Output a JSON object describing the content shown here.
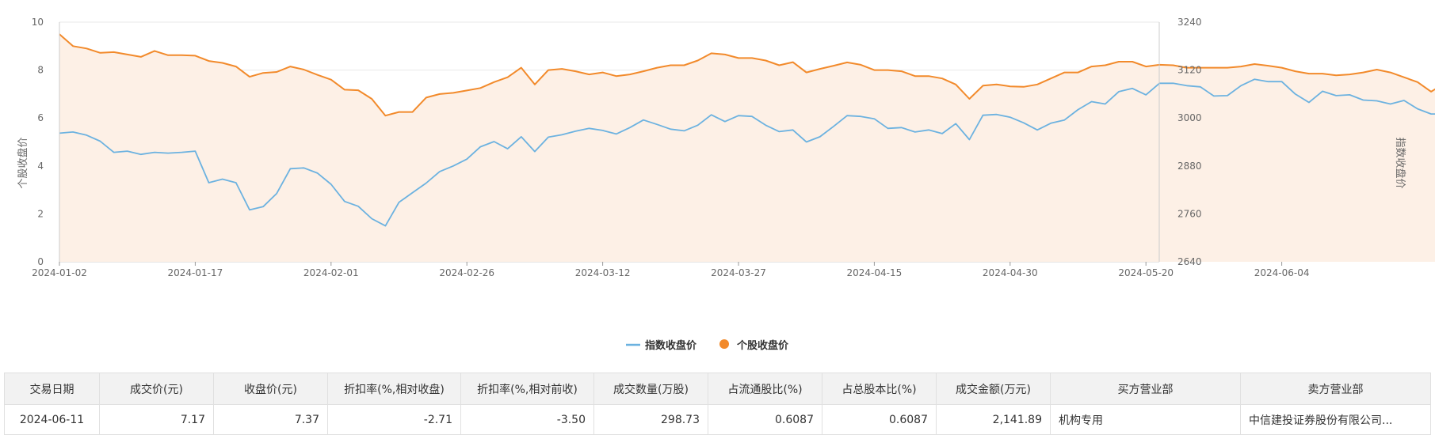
{
  "chart_data": {
    "type": "line",
    "legend_position": "bottom-center",
    "grid": true,
    "left_axis": {
      "label": "个股收盘价",
      "ylim": [
        0,
        10
      ],
      "ticks": [
        0,
        2,
        4,
        6,
        8,
        10
      ]
    },
    "right_axis": {
      "label": "指数收盘价",
      "ylim": [
        2640,
        3240
      ],
      "ticks": [
        2640,
        2760,
        2880,
        3000,
        3120,
        3240
      ]
    },
    "x_tick_labels": [
      "2024-01-02",
      "2024-01-17",
      "2024-02-01",
      "2024-02-26",
      "2024-03-12",
      "2024-03-27",
      "2024-04-15",
      "2024-04-30",
      "2024-05-20",
      "2024-06-04"
    ],
    "series": [
      {
        "name": "指数收盘价",
        "axis": "right",
        "color": "#6cb2e0",
        "values": [
          2962,
          2965,
          2957,
          2942,
          2914,
          2917,
          2909,
          2914,
          2912,
          2914,
          2917,
          2838,
          2847,
          2838,
          2770,
          2778,
          2811,
          2873,
          2875,
          2862,
          2834,
          2791,
          2779,
          2748,
          2730,
          2789,
          2813,
          2837,
          2866,
          2880,
          2897,
          2928,
          2941,
          2923,
          2953,
          2916,
          2952,
          2958,
          2967,
          2974,
          2969,
          2960,
          2976,
          2995,
          2984,
          2972,
          2968,
          2982,
          3008,
          2991,
          3006,
          3004,
          2982,
          2966,
          2970,
          2940,
          2953,
          2979,
          3006,
          3004,
          2998,
          2974,
          2976,
          2965,
          2970,
          2961,
          2986,
          2946,
          3007,
          3009,
          3002,
          2988,
          2970,
          2987,
          2995,
          3021,
          3041,
          3035,
          3066,
          3074,
          3058,
          3087,
          3087,
          3081,
          3078,
          3055,
          3056,
          3081,
          3097,
          3091,
          3091,
          3060,
          3039,
          3067,
          3056,
          3058,
          3045,
          3043,
          3035,
          3044,
          3023,
          3010,
          3010,
          2989
        ]
      },
      {
        "name": "个股收盘价",
        "axis": "left",
        "color": "#f28a2b",
        "values": [
          9.5,
          9.0,
          8.9,
          8.72,
          8.75,
          8.65,
          8.55,
          8.8,
          8.62,
          8.62,
          8.6,
          8.38,
          8.3,
          8.15,
          7.72,
          7.88,
          7.92,
          8.15,
          8.02,
          7.8,
          7.6,
          7.18,
          7.16,
          6.8,
          6.1,
          6.25,
          6.25,
          6.85,
          7.0,
          7.05,
          7.15,
          7.25,
          7.5,
          7.7,
          8.1,
          7.4,
          8.0,
          8.05,
          7.95,
          7.82,
          7.9,
          7.75,
          7.82,
          7.95,
          8.1,
          8.2,
          8.2,
          8.4,
          8.7,
          8.65,
          8.5,
          8.5,
          8.4,
          8.2,
          8.33,
          7.9,
          8.05,
          8.18,
          8.32,
          8.22,
          8.0,
          8.0,
          7.95,
          7.75,
          7.75,
          7.65,
          7.4,
          6.8,
          7.35,
          7.4,
          7.32,
          7.3,
          7.4,
          7.65,
          7.9,
          7.9,
          8.15,
          8.2,
          8.35,
          8.35,
          8.15,
          8.22,
          8.2,
          8.1,
          8.1,
          8.1,
          8.1,
          8.15,
          8.25,
          8.18,
          8.1,
          7.95,
          7.85,
          7.85,
          7.78,
          7.82,
          7.9,
          8.02,
          7.9,
          7.7,
          7.5,
          7.1,
          7.45,
          7.37
        ]
      }
    ]
  },
  "table": {
    "headers": [
      "交易日期",
      "成交价(元)",
      "收盘价(元)",
      "折扣率(%,相对收盘)",
      "折扣率(%,相对前收)",
      "成交数量(万股)",
      "占流通股比(%)",
      "占总股本比(%)",
      "成交金额(万元)",
      "买方营业部",
      "卖方营业部"
    ],
    "rows": [
      [
        "2024-06-11",
        "7.17",
        "7.37",
        "-2.71",
        "-3.50",
        "298.73",
        "0.6087",
        "0.6087",
        "2,141.89",
        "机构专用",
        "中信建投证券股份有限公司..."
      ]
    ]
  }
}
